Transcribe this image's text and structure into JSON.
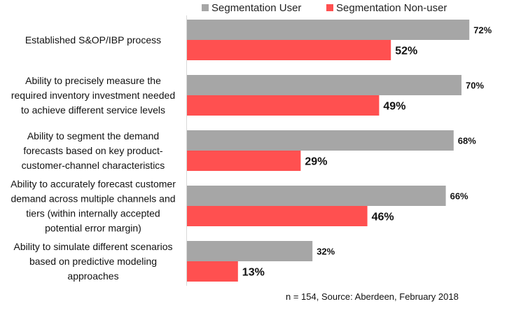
{
  "chart_data": {
    "type": "bar",
    "orientation": "horizontal",
    "categories": [
      [
        "Established S&OP/IBP process"
      ],
      [
        "Ability to precisely measure the",
        "required inventory investment needed",
        "to achieve different service levels"
      ],
      [
        "Ability to segment the demand",
        "forecasts based on key product-",
        "customer-channel characteristics"
      ],
      [
        "Ability to accurately forecast customer",
        "demand across multiple channels and",
        "tiers (within internally accepted",
        "potential error margin)"
      ],
      [
        "Ability to simulate different scenarios",
        "based on predictive modeling",
        "approaches"
      ]
    ],
    "series": [
      {
        "name": "Segmentation User",
        "color": "#a6a6a6",
        "values": [
          72,
          70,
          68,
          66,
          32
        ],
        "labels": [
          "72%",
          "70%",
          "68%",
          "66%",
          "32%"
        ]
      },
      {
        "name": "Segmentation Non-user",
        "color": "#ff5050",
        "values": [
          52,
          49,
          29,
          46,
          13
        ],
        "labels": [
          "52%",
          "49%",
          "29%",
          "46%",
          "13%"
        ]
      }
    ],
    "xlim": [
      0,
      100
    ],
    "legend_position": "top",
    "grid": false,
    "note": "n = 154, Source: Aberdeen, February 2018"
  }
}
